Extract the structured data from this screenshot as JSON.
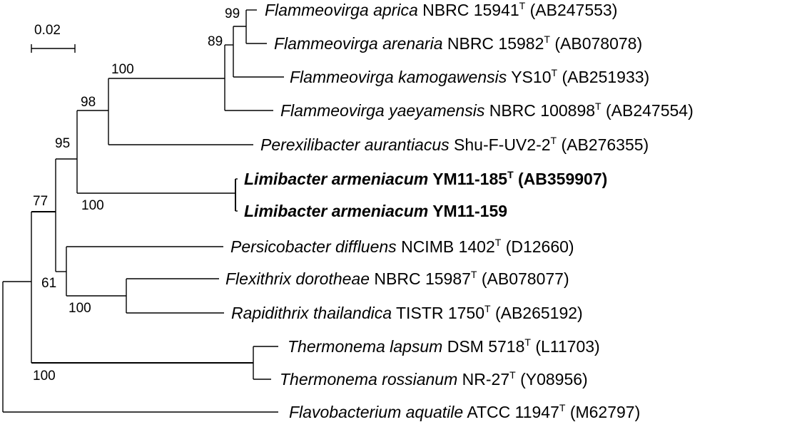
{
  "scale_bar": {
    "label": "0.02"
  },
  "taxa": [
    {
      "id": "t1",
      "species": "Flammeovirga aprica",
      "strain": "NBRC 15941",
      "type": "T",
      "accession": "(AB247553)",
      "bold": false
    },
    {
      "id": "t2",
      "species": "Flammeovirga arenaria",
      "strain": "NBRC 15982",
      "type": "T",
      "accession": "(AB078078)",
      "bold": false
    },
    {
      "id": "t3",
      "species": "Flammeovirga kamogawensis",
      "strain": "YS10",
      "type": "T",
      "accession": "(AB251933)",
      "bold": false
    },
    {
      "id": "t4",
      "species": "Flammeovirga yaeyamensis",
      "strain": "NBRC 100898",
      "type": "T",
      "accession": "(AB247554)",
      "bold": false
    },
    {
      "id": "t5",
      "species": "Perexilibacter aurantiacus",
      "strain": " Shu-F-UV2-2",
      "type": "T",
      "accession": "(AB276355)",
      "bold": false
    },
    {
      "id": "t6",
      "species": "Limibacter armeniacum",
      "strain": "YM11-185",
      "type": "T",
      "accession": "(AB359907)",
      "bold": true
    },
    {
      "id": "t7",
      "species": "Limibacter armeniacum",
      "strain": "YM11-159",
      "type": "",
      "accession": "",
      "bold": true
    },
    {
      "id": "t8",
      "species": "Persicobacter diffluens",
      "strain": "NCIMB 1402",
      "type": "T",
      "accession": "(D12660)",
      "bold": false
    },
    {
      "id": "t9",
      "species": "Flexithrix dorotheae",
      "strain": "NBRC 15987",
      "type": "T",
      "accession": "(AB078077)",
      "bold": false
    },
    {
      "id": "t10",
      "species": "Rapidithrix thailandica",
      "strain": "TISTR 1750",
      "type": "T",
      "accession": "(AB265192)",
      "bold": false
    },
    {
      "id": "t11",
      "species": "Thermonema lapsum",
      "strain": "DSM 5718",
      "type": "T",
      "accession": "(L11703)",
      "bold": false
    },
    {
      "id": "t12",
      "species": "Thermonema rossianum",
      "strain": "NR-27",
      "type": "T",
      "accession": "(Y08956)",
      "bold": false
    },
    {
      "id": "t13",
      "species": "Flavobacterium aquatile",
      "strain": "ATCC 11947",
      "type": "T",
      "accession": "(M62797)",
      "bold": false
    }
  ],
  "bootstrap": [
    {
      "id": "b99",
      "value": "99"
    },
    {
      "id": "b89",
      "value": "89"
    },
    {
      "id": "b100a",
      "value": "100"
    },
    {
      "id": "b98",
      "value": "98"
    },
    {
      "id": "b95",
      "value": "95"
    },
    {
      "id": "b100b",
      "value": "100"
    },
    {
      "id": "b77",
      "value": "77"
    },
    {
      "id": "b61",
      "value": "61"
    },
    {
      "id": "b100c",
      "value": "100"
    },
    {
      "id": "b100d",
      "value": "100"
    }
  ]
}
